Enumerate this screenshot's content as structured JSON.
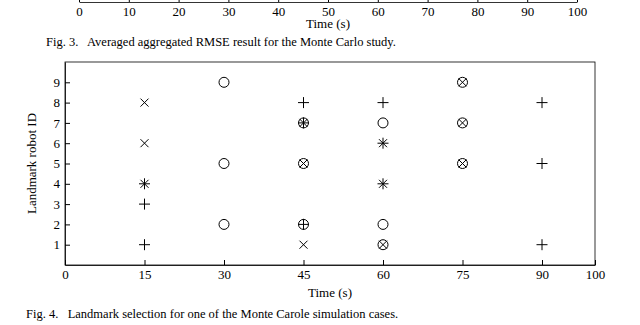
{
  "chart_data": [
    {
      "type": "line",
      "x_label": "Time (s)",
      "caption": "Fig. 3.   Averaged aggregated RMSE result for the Monte Carlo study.",
      "xlim": [
        0,
        100
      ],
      "xticks": [
        0,
        10,
        20,
        30,
        40,
        50,
        60,
        70,
        80,
        90,
        100
      ]
    },
    {
      "type": "scatter",
      "x_label": "Time (s)",
      "y_label": "Landmark robot ID",
      "caption": "Fig. 4.   Landmark selection for one of the Monte Carole simulation cases.",
      "xlim": [
        0,
        100
      ],
      "ylim": [
        0,
        10
      ],
      "xticks": [
        0,
        15,
        30,
        45,
        60,
        75,
        90,
        100
      ],
      "yticks": [
        1,
        2,
        3,
        4,
        5,
        6,
        7,
        8,
        9
      ],
      "series": [
        {
          "marker": "circle",
          "color": "#000000",
          "x": [
            30,
            30,
            30,
            45,
            45,
            45,
            60,
            60,
            60,
            75,
            75,
            75
          ],
          "values": [
            9,
            5,
            2,
            7,
            5,
            2,
            7,
            2,
            1,
            9,
            7,
            5
          ]
        },
        {
          "marker": "x",
          "color": "#000000",
          "x": [
            15,
            15,
            45,
            45,
            60,
            75,
            75,
            75
          ],
          "values": [
            8,
            6,
            5,
            1,
            1,
            9,
            7,
            5
          ]
        },
        {
          "marker": "plus",
          "color": "#000000",
          "x": [
            15,
            15,
            45,
            45,
            60,
            90,
            90,
            90
          ],
          "values": [
            3,
            1,
            8,
            2,
            8,
            8,
            5,
            1
          ]
        },
        {
          "marker": "asterisk",
          "color": "#000000",
          "x": [
            15,
            45,
            60,
            60
          ],
          "values": [
            4,
            7,
            6,
            4
          ]
        }
      ]
    }
  ]
}
